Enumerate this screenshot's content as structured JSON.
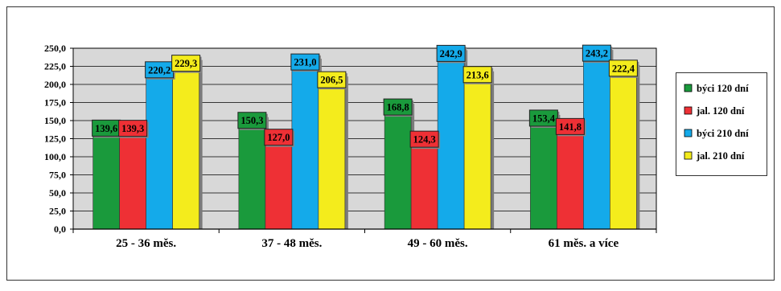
{
  "chart_data": {
    "type": "bar",
    "categories": [
      "25 - 36 měs.",
      "37 - 48  měs.",
      "49 - 60 měs.",
      "61 měs. a více"
    ],
    "series": [
      {
        "name": "býci 120 dní",
        "color": "#1a9a3c",
        "values": [
          139.6,
          150.3,
          168.8,
          153.4
        ],
        "labels": [
          "139,6",
          "150,3",
          "168,8",
          "153,4"
        ]
      },
      {
        "name": "jal. 120 dní",
        "color": "#ee3035",
        "values": [
          139.3,
          127.0,
          124.3,
          141.8
        ],
        "labels": [
          "139,3",
          "127,0",
          "124,3",
          "141,8"
        ]
      },
      {
        "name": "býci 210 dní",
        "color": "#14aaea",
        "values": [
          220.2,
          231.0,
          242.9,
          243.2
        ],
        "labels": [
          "220,2",
          "231,0",
          "242,9",
          "243,2"
        ]
      },
      {
        "name": "jal. 210 dní",
        "color": "#f4ec1c",
        "values": [
          229.3,
          206.5,
          213.6,
          222.4
        ],
        "labels": [
          "229,3",
          "206,5",
          "213,6",
          "222,4"
        ]
      }
    ],
    "ylim": [
      0,
      250
    ],
    "yticks": [
      "0,0",
      "25,0",
      "50,0",
      "75,0",
      "100,0",
      "125,0",
      "150,0",
      "175,0",
      "200,0",
      "225,0",
      "250,0"
    ],
    "grid": true,
    "legend": "right",
    "background_color": "#d8d8d8",
    "title": "",
    "xlabel": "",
    "ylabel": ""
  }
}
